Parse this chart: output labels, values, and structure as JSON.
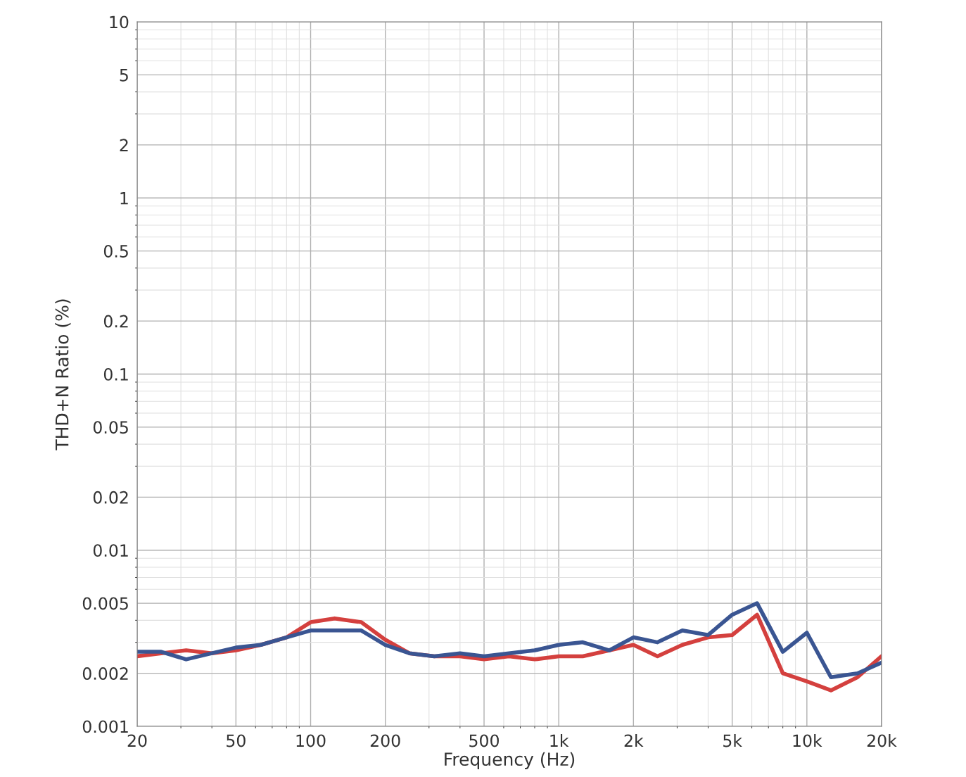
{
  "chart_data": {
    "type": "line",
    "xlabel": "Frequency (Hz)",
    "ylabel": "THD+N Ratio (%)",
    "log": "xy",
    "grid": true,
    "x": [
      20,
      25,
      31.5,
      40,
      50,
      63,
      80,
      100,
      125,
      160,
      200,
      250,
      315,
      400,
      500,
      630,
      800,
      1000,
      1250,
      1600,
      2000,
      2500,
      3150,
      4000,
      5000,
      6300,
      8000,
      10000,
      12500,
      16000,
      20000
    ],
    "xlim": [
      20,
      20000
    ],
    "ylim": [
      0.001,
      10
    ],
    "xticks": [
      20,
      50,
      100,
      200,
      500,
      {
        "value": 1000,
        "label": "1k"
      },
      {
        "value": 2000,
        "label": "2k"
      },
      {
        "value": 5000,
        "label": "5k"
      },
      {
        "value": 10000,
        "label": "10k"
      },
      {
        "value": 20000,
        "label": "20k"
      }
    ],
    "yticks": [
      0.001,
      0.002,
      0.005,
      0.01,
      0.02,
      0.05,
      0.1,
      0.2,
      0.5,
      1,
      2,
      5,
      10
    ],
    "series": [
      {
        "color": "#d4403e",
        "values": [
          0.0025,
          0.0026,
          0.0027,
          0.0026,
          0.0027,
          0.0029,
          0.0032,
          0.0039,
          0.0041,
          0.0039,
          0.0031,
          0.0026,
          0.0025,
          0.0025,
          0.0024,
          0.0025,
          0.0024,
          0.0025,
          0.0025,
          0.0027,
          0.0029,
          0.0025,
          0.0029,
          0.0032,
          0.0033,
          0.0043,
          0.002,
          0.0018,
          0.0016,
          0.0019,
          0.0025
        ]
      },
      {
        "color": "#3a5592",
        "values": [
          0.00265,
          0.00265,
          0.0024,
          0.0026,
          0.0028,
          0.0029,
          0.0032,
          0.0035,
          0.0035,
          0.0035,
          0.0029,
          0.0026,
          0.0025,
          0.0026,
          0.0025,
          0.0026,
          0.0027,
          0.0029,
          0.003,
          0.0027,
          0.0032,
          0.003,
          0.0035,
          0.0033,
          0.0043,
          0.005,
          0.00265,
          0.0034,
          0.0019,
          0.002,
          0.0023
        ]
      }
    ]
  }
}
